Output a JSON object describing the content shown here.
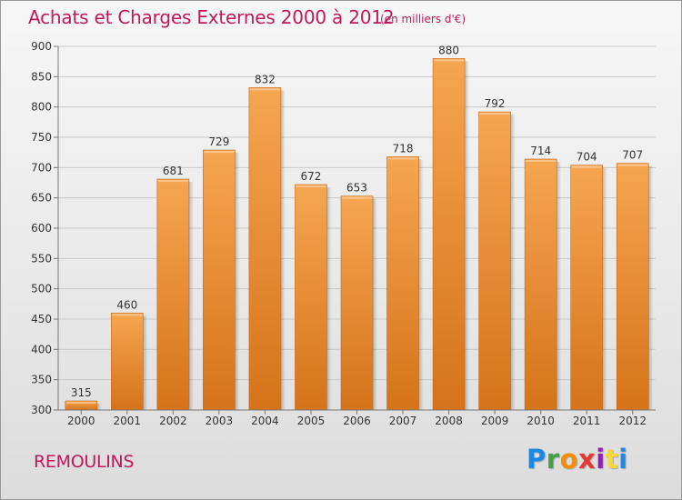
{
  "header": {
    "title": "Achats et Charges Externes 2000 à 2012",
    "unit": "(en milliers d'€)"
  },
  "footer": {
    "commune": "REMOULINS",
    "logo_text": "Proxiti"
  },
  "colors": {
    "accent": "#c2185b",
    "bar_top": "#f6a650",
    "bar_bottom": "#d5731a",
    "grid": "#c9c9c9"
  },
  "chart_data": {
    "type": "bar",
    "title": "Achats et Charges Externes 2000 à 2012",
    "subtitle": "(en milliers d'€)",
    "xlabel": "",
    "ylabel": "",
    "categories": [
      "2000",
      "2001",
      "2002",
      "2003",
      "2004",
      "2005",
      "2006",
      "2007",
      "2008",
      "2009",
      "2010",
      "2011",
      "2012"
    ],
    "values": [
      315,
      460,
      681,
      729,
      832,
      672,
      653,
      718,
      880,
      792,
      714,
      704,
      707
    ],
    "data_labels": [
      "315",
      "460",
      "681",
      "729",
      "832",
      "672",
      "653",
      "718",
      "880",
      "792",
      "714",
      "704",
      "707"
    ],
    "ylim": [
      300,
      900
    ],
    "yticks": [
      300,
      350,
      400,
      450,
      500,
      550,
      600,
      650,
      700,
      750,
      800,
      850,
      900
    ],
    "grid": true,
    "legend": "none"
  }
}
